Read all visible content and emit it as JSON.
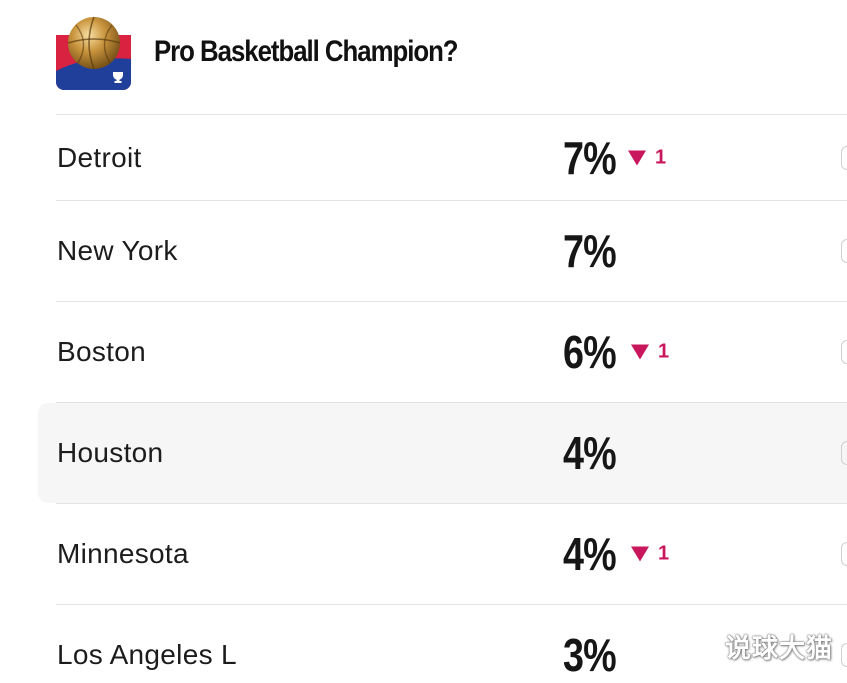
{
  "header": {
    "title": "Pro Basketball Champion?",
    "icon": "basketball-trophy-icon"
  },
  "colors": {
    "icon_red": "#d9223f",
    "icon_blue": "#1f3f9a",
    "down": "#c8175d",
    "divider": "#e3e3e3",
    "highlight": "#f6f6f6"
  },
  "rows": [
    {
      "team": "Detroit",
      "pct": "7%",
      "change": "1",
      "direction": "down"
    },
    {
      "team": "New York",
      "pct": "7%",
      "change": "",
      "direction": ""
    },
    {
      "team": "Boston",
      "pct": "6%",
      "change": "1",
      "direction": "down"
    },
    {
      "team": "Houston",
      "pct": "4%",
      "change": "",
      "direction": "",
      "highlighted": true
    },
    {
      "team": "Minnesota",
      "pct": "4%",
      "change": "1",
      "direction": "down"
    },
    {
      "team": "Los Angeles L",
      "pct": "3%",
      "change": "",
      "direction": ""
    }
  ],
  "watermark": "说球大猫"
}
